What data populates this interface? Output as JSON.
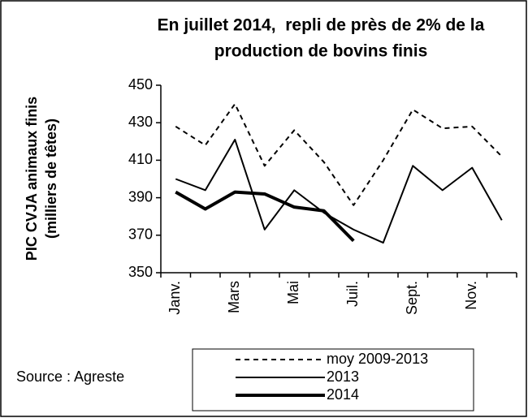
{
  "chart_data": {
    "type": "line",
    "title": [
      "En juillet 2014,  repli de près de 2% de la",
      "production de bovins finis"
    ],
    "y_label": [
      "PIC CVJA animaux finis",
      "(milliers de têtes)"
    ],
    "annotation": "Source : Agreste",
    "categories": [
      "Janv.",
      null,
      "Mars",
      null,
      "Mai",
      null,
      "Juil.",
      null,
      "Sept.",
      null,
      "Nov.",
      null
    ],
    "series": [
      {
        "name": "moy 2009-2013",
        "color": "#000000",
        "dash": true,
        "width": 2,
        "values": [
          428,
          418,
          440,
          407,
          426,
          409,
          386,
          410,
          437,
          427,
          428,
          412
        ]
      },
      {
        "name": "2013",
        "color": "#000000",
        "dash": false,
        "width": 2,
        "values": [
          400,
          394,
          421,
          373,
          394,
          382,
          373,
          366,
          407,
          394,
          406,
          378
        ]
      },
      {
        "name": "2014",
        "color": "#000000",
        "dash": false,
        "width": 4,
        "values": [
          393,
          384,
          393,
          392,
          385,
          383,
          367,
          null,
          null,
          null,
          null,
          null
        ]
      }
    ],
    "ylim": [
      350,
      450
    ],
    "yticks": [
      350,
      370,
      390,
      410,
      430,
      450
    ],
    "grid": false
  }
}
